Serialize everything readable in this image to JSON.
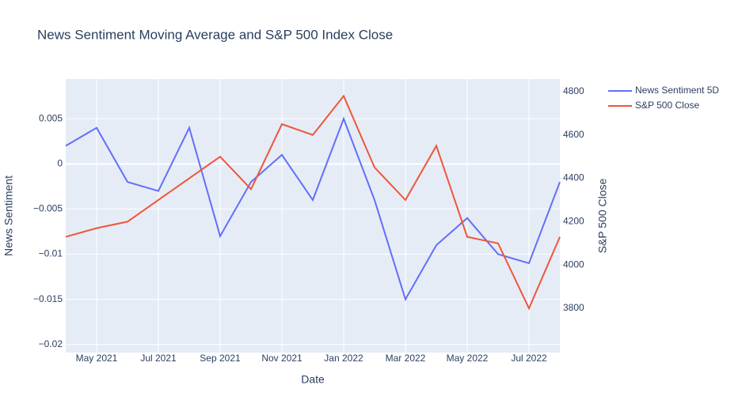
{
  "chart_data": {
    "type": "line",
    "title": "News Sentiment Moving Average and S&P 500 Index Close",
    "x_label": "Date",
    "y_label": "News Sentiment",
    "y2_label": "S&P 500 Close",
    "x": [
      "2021-04",
      "2021-05",
      "2021-06",
      "2021-07",
      "2021-08",
      "2021-09",
      "2021-10",
      "2021-11",
      "2021-12",
      "2022-01",
      "2022-02",
      "2022-03",
      "2022-04",
      "2022-05",
      "2022-06",
      "2022-07",
      "2022-08"
    ],
    "series": [
      {
        "name": "News Sentiment 5D",
        "color": "#636efa",
        "values": [
          0.002,
          0.004,
          -0.002,
          -0.003,
          0.004,
          -0.008,
          -0.002,
          0.001,
          -0.004,
          0.005,
          -0.004,
          -0.015,
          -0.009,
          -0.006,
          -0.01,
          -0.011,
          -0.002
        ]
      },
      {
        "name": "S&P 500 Close",
        "color": "#ef553b",
        "axis": "y2",
        "values": [
          4130,
          4170,
          4200,
          4300,
          4400,
          4500,
          4350,
          4650,
          4600,
          4780,
          4450,
          4300,
          4550,
          4130,
          4100,
          3800,
          4130
        ]
      }
    ],
    "xlim": [
      "2021-04",
      "2022-08"
    ],
    "xticks": [
      {
        "value": "2021-05",
        "label": "May 2021"
      },
      {
        "value": "2021-07",
        "label": "Jul 2021"
      },
      {
        "value": "2021-09",
        "label": "Sep 2021"
      },
      {
        "value": "2021-11",
        "label": "Nov 2021"
      },
      {
        "value": "2022-01",
        "label": "Jan 2022"
      },
      {
        "value": "2022-03",
        "label": "Mar 2022"
      },
      {
        "value": "2022-05",
        "label": "May 2022"
      },
      {
        "value": "2022-07",
        "label": "Jul 2022"
      }
    ],
    "ylim": [
      -0.0209,
      0.0094
    ],
    "yticks": [
      {
        "value": -0.02,
        "label": "−0.02"
      },
      {
        "value": -0.015,
        "label": "−0.015"
      },
      {
        "value": -0.01,
        "label": "−0.01"
      },
      {
        "value": -0.005,
        "label": "−0.005"
      },
      0,
      0.005
    ],
    "y2lim": [
      3596,
      4858
    ],
    "y2ticks": [
      3800,
      4000,
      4200,
      4400,
      4600,
      4800
    ],
    "grid": true,
    "legend": "top-right"
  }
}
